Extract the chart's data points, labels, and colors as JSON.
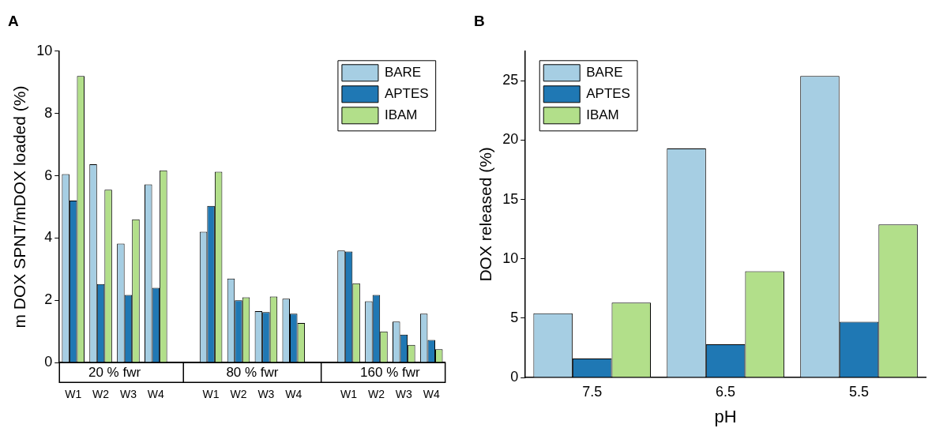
{
  "chart_data": [
    {
      "type": "bar",
      "title": "A",
      "ylabel": "m DOX SPNT/mDOX loaded (%)",
      "categories": [
        "W1",
        "W2",
        "W3",
        "W4",
        null,
        "W1",
        "W2",
        "W3",
        "W4",
        null,
        "W1",
        "W2",
        "W3",
        "W4"
      ],
      "series": [
        {
          "name": "BARE",
          "color": "#a6cee3",
          "values": [
            6.05,
            6.37,
            3.82,
            5.72,
            null,
            4.2,
            2.7,
            1.65,
            2.05,
            null,
            3.6,
            1.97,
            1.32,
            1.57
          ]
        },
        {
          "name": "APTES",
          "color": "#1f78b4",
          "values": [
            5.2,
            2.52,
            2.17,
            2.4,
            null,
            5.03,
            2.0,
            1.62,
            1.57,
            null,
            3.57,
            2.17,
            0.9,
            0.73
          ]
        },
        {
          "name": "IBAM",
          "color": "#b2df8a",
          "values": [
            9.2,
            5.55,
            4.6,
            6.17,
            null,
            6.13,
            2.1,
            2.12,
            1.27,
            null,
            2.55,
            1.0,
            0.57,
            0.43
          ]
        }
      ],
      "annotations": [
        "20 % fwr",
        "80 % fwr",
        "160 % fwr"
      ],
      "ylim": [
        0,
        10
      ],
      "yticks": [
        0,
        2,
        4,
        6,
        8,
        10
      ],
      "legend": "top right"
    },
    {
      "type": "bar",
      "title": "B",
      "xlabel": "pH",
      "ylabel": "DOX released (%)",
      "categories": [
        "7.5",
        "6.5",
        "5.5"
      ],
      "series": [
        {
          "name": "BARE",
          "color": "#a6cee3",
          "values": [
            5.4,
            19.3,
            25.4
          ]
        },
        {
          "name": "APTES",
          "color": "#1f78b4",
          "values": [
            1.6,
            2.8,
            4.7
          ]
        },
        {
          "name": "IBAM",
          "color": "#b2df8a",
          "values": [
            6.3,
            8.95,
            12.9
          ]
        }
      ],
      "ylim": [
        0,
        27.5
      ],
      "yticks": [
        0,
        5,
        10,
        15,
        20,
        25
      ],
      "legend": "top left"
    }
  ]
}
